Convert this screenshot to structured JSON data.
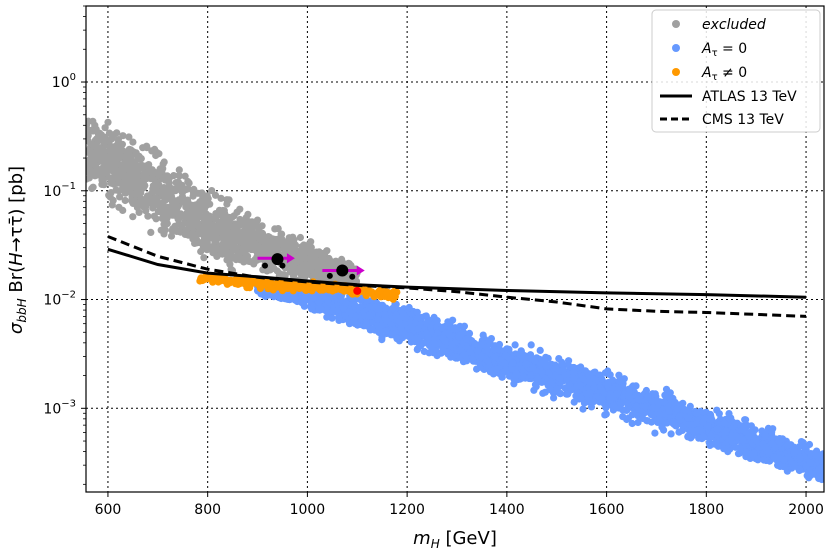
{
  "chart_data": {
    "type": "scatter",
    "x_unit_label": "m_H [GeV]",
    "xlabel_main": "m",
    "xlabel_sub": "H",
    "xlabel_unit": " [GeV]",
    "ylabel_sigma": "σ",
    "ylabel_sub": "bbH",
    "ylabel_mid": " Br(",
    "ylabel_H": "H",
    "ylabel_arrow": "→ττ̄) [pb]",
    "xlim": [
      556,
      2036
    ],
    "ylim": [
      0.00017,
      5.0
    ],
    "yscale": "log",
    "x_ticks": [
      600,
      800,
      1000,
      1200,
      1400,
      1600,
      1800,
      2000
    ],
    "x_tick_labels": [
      "600",
      "800",
      "1000",
      "1200",
      "1400",
      "1600",
      "1800",
      "2000"
    ],
    "y_ticks": [
      0.001,
      0.01,
      0.1,
      1
    ],
    "y_tick_labels": [
      {
        "base": "10",
        "exp": "−3"
      },
      {
        "base": "10",
        "exp": "−2"
      },
      {
        "base": "10",
        "exp": "−1"
      },
      {
        "base": "10",
        "exp": "0"
      }
    ],
    "grid": true,
    "legend_position": "top-right",
    "series": [
      {
        "name": "excluded",
        "kind": "scatter-band",
        "color": "#a0a0a0",
        "band": [
          [
            556,
            0.08,
            0.75
          ],
          [
            700,
            0.03,
            0.3
          ],
          [
            800,
            0.018,
            0.12
          ],
          [
            900,
            0.015,
            0.065
          ],
          [
            1000,
            0.013,
            0.04
          ],
          [
            1100,
            0.012,
            0.022
          ]
        ]
      },
      {
        "name": "A_τ = 0",
        "kind": "scatter-band",
        "color": "#6699ff",
        "band": [
          [
            900,
            0.011,
            0.014
          ],
          [
            1000,
            0.008,
            0.013
          ],
          [
            1100,
            0.0045,
            0.013
          ],
          [
            1200,
            0.0032,
            0.01
          ],
          [
            1400,
            0.0016,
            0.0045
          ],
          [
            1600,
            0.0008,
            0.0025
          ],
          [
            1800,
            0.0004,
            0.0012
          ],
          [
            2036,
            0.00018,
            0.00045
          ]
        ]
      },
      {
        "name": "A_τ ≠ 0",
        "kind": "scatter-band",
        "color": "#ff9900",
        "band": [
          [
            780,
            0.0145,
            0.018
          ],
          [
            900,
            0.012,
            0.016
          ],
          [
            1000,
            0.0115,
            0.015
          ],
          [
            1100,
            0.0105,
            0.014
          ],
          [
            1180,
            0.0095,
            0.013
          ]
        ]
      },
      {
        "name": "ATLAS 13 TeV",
        "kind": "line",
        "style": "solid",
        "color": "#000000",
        "x": [
          600,
          700,
          800,
          900,
          1000,
          1100,
          1200,
          1400,
          1600,
          1800,
          2000
        ],
        "y": [
          0.029,
          0.021,
          0.0175,
          0.0162,
          0.0148,
          0.0137,
          0.013,
          0.0121,
          0.0115,
          0.0111,
          0.0105
        ]
      },
      {
        "name": "CMS 13 TeV",
        "kind": "line",
        "style": "dashed",
        "color": "#000000",
        "x": [
          600,
          700,
          800,
          900,
          1000,
          1100,
          1200,
          1300,
          1400,
          1500,
          1600,
          1700,
          1800,
          1900,
          2000
        ],
        "y": [
          0.038,
          0.025,
          0.019,
          0.016,
          0.0145,
          0.0135,
          0.0128,
          0.0118,
          0.0105,
          0.0095,
          0.0082,
          0.0078,
          0.0076,
          0.0073,
          0.007
        ]
      }
    ],
    "highlight_points": [
      {
        "x": 940,
        "y": 0.0235,
        "color": "#000000",
        "size": 6
      },
      {
        "x": 1070,
        "y": 0.0185,
        "color": "#000000",
        "size": 6
      },
      {
        "x": 915,
        "y": 0.0205,
        "color": "#000000",
        "size": 3
      },
      {
        "x": 950,
        "y": 0.0205,
        "color": "#000000",
        "size": 3
      },
      {
        "x": 1045,
        "y": 0.0165,
        "color": "#000000",
        "size": 3
      },
      {
        "x": 1090,
        "y": 0.0162,
        "color": "#000000",
        "size": 3
      },
      {
        "x": 1100,
        "y": 0.012,
        "color": "#ff0000",
        "size": 4
      }
    ],
    "arrows": [
      {
        "x_start": 900,
        "x_end": 975,
        "y": 0.024,
        "color": "#cc00cc"
      },
      {
        "x_start": 1030,
        "x_end": 1115,
        "y": 0.0185,
        "color": "#cc00cc"
      }
    ],
    "legend": {
      "excluded": "excluded",
      "atau0_label": "A",
      "atau0_sub": "τ",
      "atau0_rest": " = 0",
      "ataun0_label": "A",
      "ataun0_sub": "τ",
      "ataun0_rest": " ≠ 0",
      "atlas": "ATLAS 13 TeV",
      "cms": "CMS 13 TeV"
    }
  }
}
